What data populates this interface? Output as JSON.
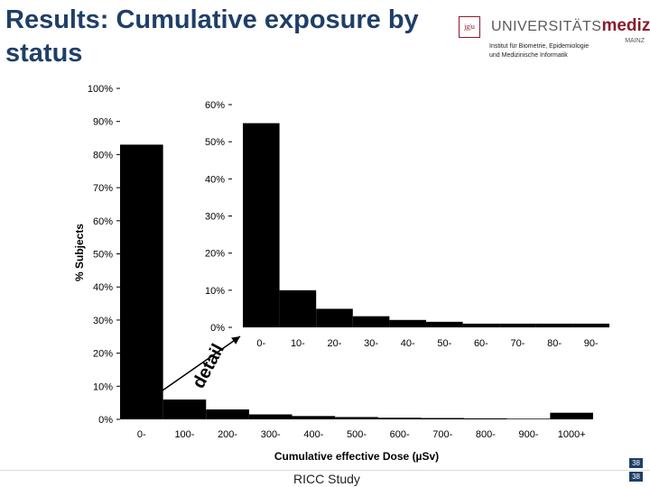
{
  "title": "Results: Cumulative exposure by status",
  "logo": {
    "box_text": "jg|u",
    "uni_text": "UNIVERSITÄTS",
    "med_text": "medizin.",
    "mainz_text": "MAINZ",
    "institute_line1": "Institut für Biometrie, Epidemiologie",
    "institute_line2": "und Medizinische Informatik"
  },
  "footer": {
    "study": "RICC Study",
    "page_top": "38",
    "page_bottom": "38"
  },
  "colors": {
    "bar": "#000000",
    "title": "#1f3f68",
    "arrow": "#000000"
  },
  "chart_data": [
    {
      "type": "bar",
      "categories": [
        "0-",
        "100-",
        "200-",
        "300-",
        "400-",
        "500-",
        "600-",
        "700-",
        "800-",
        "900-",
        "1000+"
      ],
      "values": [
        83,
        6,
        3,
        1.5,
        1,
        0.7,
        0.5,
        0.4,
        0.3,
        0.2,
        2
      ],
      "xlabel": "Cumulative effective Dose (µSv)",
      "ylabel": "% Subjects",
      "ylim": [
        0,
        100
      ],
      "yticks": [
        "0%",
        "10%",
        "20%",
        "30%",
        "40%",
        "50%",
        "60%",
        "70%",
        "80%",
        "90%",
        "100%"
      ]
    },
    {
      "type": "bar",
      "categories": [
        "0-",
        "10-",
        "20-",
        "30-",
        "40-",
        "50-",
        "60-",
        "70-",
        "80-",
        "90-"
      ],
      "values": [
        55,
        10,
        5,
        3,
        2,
        1.5,
        1,
        1,
        1,
        1
      ],
      "ylim": [
        0,
        60
      ],
      "yticks": [
        "0%",
        "10%",
        "20%",
        "30%",
        "40%",
        "50%",
        "60%"
      ],
      "annotation": "detail"
    }
  ]
}
